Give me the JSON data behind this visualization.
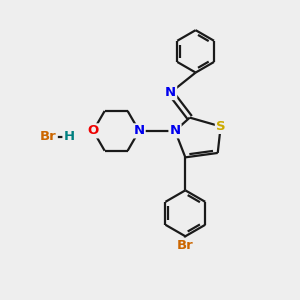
{
  "bg_color": "#eeeeee",
  "atom_colors": {
    "C": "#1a1a1a",
    "N": "#0000ee",
    "S": "#ccaa00",
    "O": "#ee0000",
    "Br": "#cc6600",
    "H": "#008080"
  },
  "bond_color": "#1a1a1a",
  "bond_width": 1.6,
  "fig_w": 3.0,
  "fig_h": 3.0,
  "dpi": 100
}
